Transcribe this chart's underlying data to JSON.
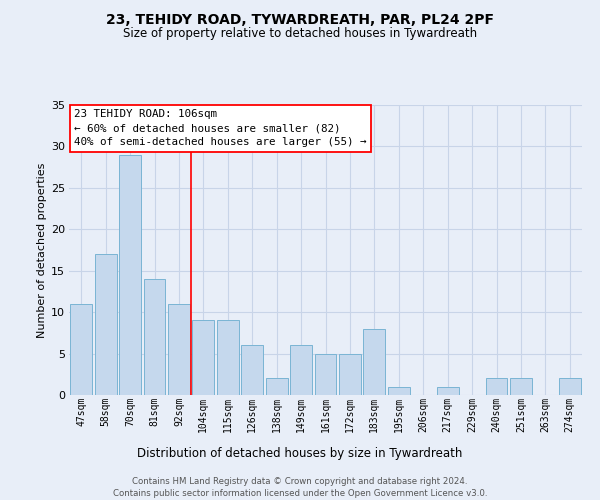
{
  "title": "23, TEHIDY ROAD, TYWARDREATH, PAR, PL24 2PF",
  "subtitle": "Size of property relative to detached houses in Tywardreath",
  "xlabel": "Distribution of detached houses by size in Tywardreath",
  "ylabel": "Number of detached properties",
  "categories": [
    "47sqm",
    "58sqm",
    "70sqm",
    "81sqm",
    "92sqm",
    "104sqm",
    "115sqm",
    "126sqm",
    "138sqm",
    "149sqm",
    "161sqm",
    "172sqm",
    "183sqm",
    "195sqm",
    "206sqm",
    "217sqm",
    "229sqm",
    "240sqm",
    "251sqm",
    "263sqm",
    "274sqm"
  ],
  "values": [
    11,
    17,
    29,
    14,
    11,
    9,
    9,
    6,
    2,
    6,
    5,
    5,
    8,
    1,
    0,
    1,
    0,
    2,
    2,
    0,
    2
  ],
  "bar_color": "#c5d8ed",
  "bar_edge_color": "#7ab4d4",
  "vline_color": "red",
  "vline_x": 4.5,
  "annotation_text": "23 TEHIDY ROAD: 106sqm\n← 60% of detached houses are smaller (82)\n40% of semi-detached houses are larger (55) →",
  "ylim_max": 35,
  "yticks": [
    0,
    5,
    10,
    15,
    20,
    25,
    30,
    35
  ],
  "grid_color": "#c8d4e8",
  "bg_color": "#e8eef8",
  "footer_line1": "Contains HM Land Registry data © Crown copyright and database right 2024.",
  "footer_line2": "Contains public sector information licensed under the Open Government Licence v3.0."
}
